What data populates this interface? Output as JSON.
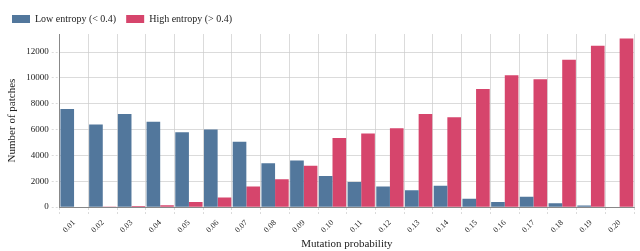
{
  "chart_data": {
    "type": "bar",
    "x_label": "Mutation probability",
    "y_label": "Number of patches",
    "categories": [
      "0.01",
      "0.02",
      "0.03",
      "0.04",
      "0.05",
      "0.06",
      "0.07",
      "0.08",
      "0.09",
      "0.10",
      "0.11",
      "0.12",
      "0.13",
      "0.14",
      "0.15",
      "0.16",
      "0.17",
      "0.18",
      "0.19",
      "0.20"
    ],
    "series": [
      {
        "name": "Low entropy (< 0.4)",
        "color": "#52779c",
        "values": [
          7600,
          6400,
          7200,
          6600,
          5800,
          6000,
          5050,
          3400,
          3600,
          2400,
          1950,
          1600,
          1300,
          1650,
          650,
          400,
          800,
          300,
          120,
          20
        ]
      },
      {
        "name": "High entropy (> 0.4)",
        "color": "#d6456c",
        "values": [
          30,
          50,
          80,
          150,
          400,
          750,
          1600,
          2150,
          3200,
          5350,
          5700,
          6100,
          7200,
          6950,
          9150,
          10200,
          9900,
          11400,
          12500,
          13050
        ]
      }
    ],
    "ylim": [
      0,
      13400
    ],
    "yticks": [
      0,
      2000,
      4000,
      6000,
      8000,
      10000,
      12000
    ],
    "grid": true,
    "legend": "top-left"
  }
}
